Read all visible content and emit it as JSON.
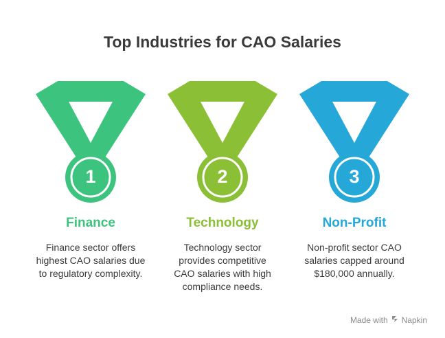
{
  "title": "Top Industries for CAO Salaries",
  "items": [
    {
      "rank": "1",
      "name": "Finance",
      "description": "Finance sector offers highest CAO salaries due to regulatory complexity.",
      "color": "#3cc47e",
      "dark_color": "#2a9f5f"
    },
    {
      "rank": "2",
      "name": "Technology",
      "description": "Technology sector provides competitive CAO salaries with high compliance needs.",
      "color": "#8bbf35",
      "dark_color": "#6f9a24"
    },
    {
      "rank": "3",
      "name": "Non-Profit",
      "description": "Non-profit sector CAO salaries capped around $180,000 annually.",
      "color": "#25a7d8",
      "dark_color": "#1486b3"
    }
  ],
  "footer": {
    "made_with": "Made with",
    "brand": "Napkin",
    "brand_icon": "napkin-logo-icon"
  }
}
